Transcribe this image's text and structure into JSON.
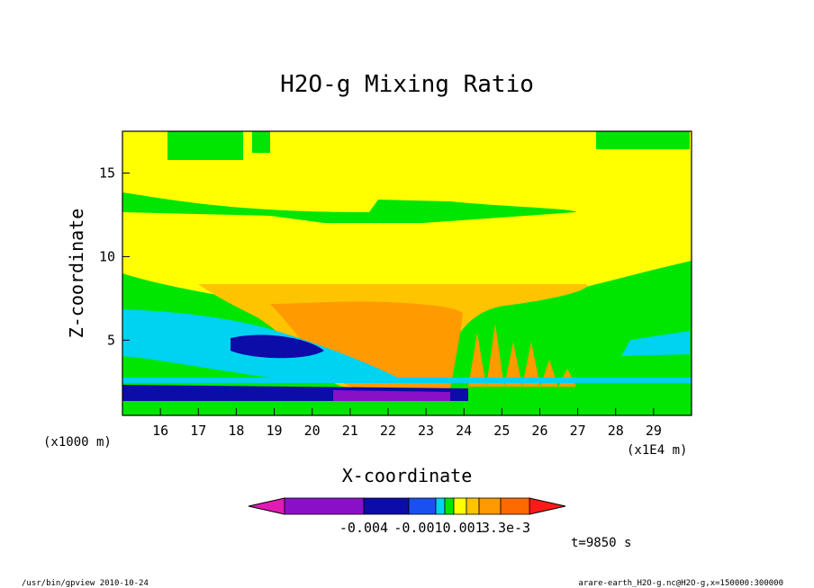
{
  "chart_data": {
    "type": "contour",
    "title": "H2O-g Mixing Ratio",
    "xlabel": "X-coordinate",
    "ylabel": "Z-coordinate",
    "x_unit_left": "(x1000 m)",
    "x_unit_right": "(x1E4 m)",
    "xticks": [
      "16",
      "17",
      "18",
      "19",
      "20",
      "21",
      "22",
      "23",
      "24",
      "25",
      "26",
      "27",
      "28",
      "29"
    ],
    "xlim": [
      15.0,
      30.0
    ],
    "yticks": [
      "5",
      "10",
      "15"
    ],
    "ylim": [
      0.5,
      17.5
    ],
    "time_label": "t=9850 s",
    "colorbar": {
      "labels": [
        "-0.004",
        "-0.0010.001",
        "3.3e-3"
      ],
      "colors": [
        "#e01cb4",
        "#8a10c8",
        "#0c0ca8",
        "#1a50f0",
        "#00d2f2",
        "#00e600",
        "#ffff00",
        "#ffc400",
        "#ff9a00",
        "#ff6a00",
        "#ff1a1a"
      ]
    },
    "regions": [
      {
        "level": "bg-yellow",
        "color": "#ffff00"
      },
      {
        "level": "green-top",
        "color": "#00e600"
      },
      {
        "level": "green-middle",
        "color": "#00e600"
      },
      {
        "level": "orange-light",
        "color": "#ffc400"
      },
      {
        "level": "orange",
        "color": "#ff9a00"
      },
      {
        "level": "cyan",
        "color": "#00d2f2"
      },
      {
        "level": "blue",
        "color": "#0c0ca8"
      },
      {
        "level": "purple",
        "color": "#8a10c8"
      }
    ]
  },
  "footer": {
    "left": "/usr/bin/gpview   2010-10-24",
    "right": "arare-earth_H2O-g.nc@H2O-g,x=150000:300000"
  }
}
